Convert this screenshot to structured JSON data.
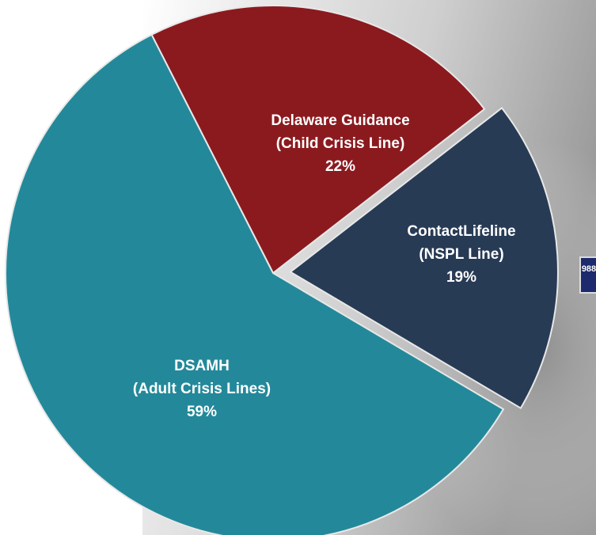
{
  "chart_data": {
    "type": "pie",
    "categories": [
      "Delaware Guidance",
      "ContactLifeline",
      "DSAMH"
    ],
    "descriptions": [
      "(Child Crisis Line)",
      "(NSPL Line)",
      "(Adult Crisis Lines)"
    ],
    "values": [
      22,
      19,
      59
    ],
    "value_labels": [
      "22%",
      "19%",
      "59%"
    ],
    "colors": [
      "#8b1a1f",
      "#283b55",
      "#23899a"
    ],
    "exploded": [
      false,
      true,
      false
    ],
    "logo_text": "988"
  }
}
